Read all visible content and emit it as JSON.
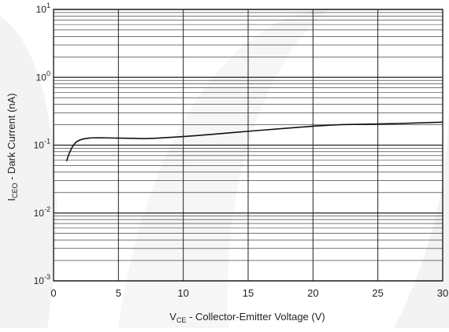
{
  "chart_data": {
    "type": "line",
    "title": "",
    "xlabel": {
      "main": "V",
      "sub": "CE",
      "rest": " - Collector-Emitter Voltage (V)"
    },
    "ylabel": {
      "main": "I",
      "sub": "CEO",
      "rest": " - Dark Current (nA)"
    },
    "xlim": [
      0,
      30
    ],
    "ylim": [
      0.001,
      10
    ],
    "yscale": "log",
    "grid": true,
    "legend": "none",
    "x_ticks": [
      {
        "value": 0,
        "label": "0"
      },
      {
        "value": 5,
        "label": "5"
      },
      {
        "value": 10,
        "label": "10"
      },
      {
        "value": 15,
        "label": "15"
      },
      {
        "value": 20,
        "label": "20"
      },
      {
        "value": 25,
        "label": "25"
      },
      {
        "value": 30,
        "label": "30"
      }
    ],
    "y_ticks": [
      {
        "value": 10,
        "base": "10",
        "exp": "1"
      },
      {
        "value": 1,
        "base": "10",
        "exp": "0"
      },
      {
        "value": 0.1,
        "base": "10",
        "exp": "-1"
      },
      {
        "value": 0.01,
        "base": "10",
        "exp": "-2"
      },
      {
        "value": 0.001,
        "base": "10",
        "exp": "-3"
      }
    ],
    "series": [
      {
        "x": [
          1.0,
          1.2,
          1.5,
          1.8,
          2.2,
          2.6,
          3.0,
          4.0,
          5.0,
          6.0,
          7.0,
          8.0,
          10.0,
          12.0,
          15.0,
          18.0,
          20.0,
          22.0,
          25.0,
          28.0,
          30.0
        ],
        "y": [
          0.058,
          0.075,
          0.098,
          0.113,
          0.122,
          0.126,
          0.128,
          0.128,
          0.127,
          0.126,
          0.125,
          0.127,
          0.134,
          0.143,
          0.16,
          0.178,
          0.19,
          0.2,
          0.205,
          0.212,
          0.218
        ]
      }
    ],
    "colors": {
      "line": "#111111",
      "grid": "#222222",
      "background": "#ffffff",
      "watermark": "#f2f2f2"
    }
  }
}
